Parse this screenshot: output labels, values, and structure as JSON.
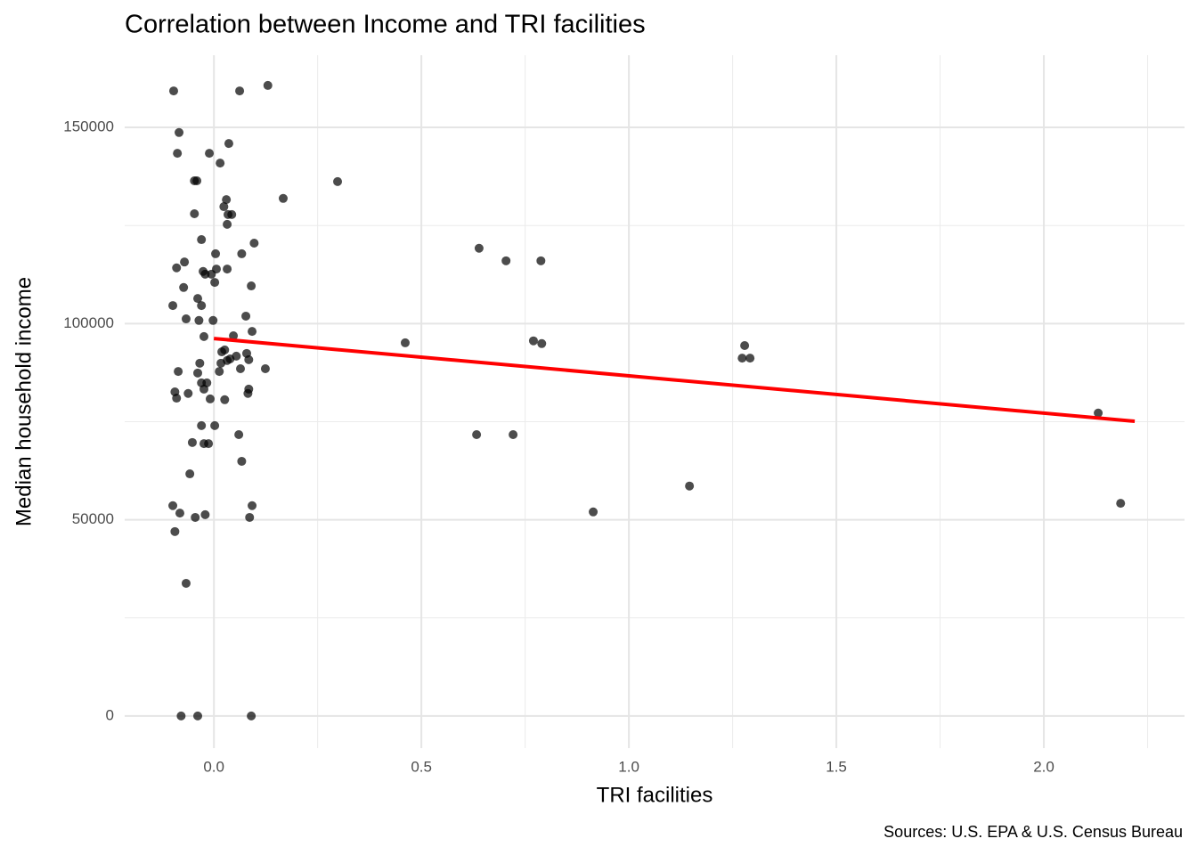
{
  "chart_data": {
    "type": "scatter",
    "title": "Correlation between Income and TRI facilities",
    "x_label": "TRI facilities",
    "y_label": "Median household income",
    "caption": "Sources: U.S. EPA & U.S. Census Bureau",
    "color": "#000000",
    "grid": true,
    "xlim": [
      -0.215,
      2.339
    ],
    "ylim": [
      -8200,
      168400
    ],
    "xticks": [
      {
        "value": 0,
        "label": "0.0"
      },
      0.5,
      {
        "value": 1,
        "label": "1.0"
      },
      1.5,
      {
        "value": 2,
        "label": "2.0"
      }
    ],
    "yticks": [
      0,
      50000,
      100000,
      150000
    ],
    "xminor_ticks": [
      0.25,
      0.75,
      1.25,
      1.75,
      2.25
    ],
    "yminor_ticks": [
      25000,
      75000,
      125000
    ],
    "x": [
      -0.097,
      0.062,
      0.13,
      -0.084,
      0.036,
      -0.088,
      -0.011,
      -0.047,
      -0.041,
      0.015,
      0.298,
      0.167,
      0.03,
      0.024,
      0.043,
      0.034,
      -0.047,
      0.032,
      -0.03,
      0.097,
      -0.09,
      -0.071,
      0.004,
      0.067,
      -0.026,
      -0.021,
      -0.006,
      0.002,
      0.006,
      0.032,
      -0.073,
      0.09,
      -0.039,
      -0.099,
      -0.03,
      -0.067,
      -0.036,
      -0.002,
      0.077,
      -0.024,
      0.047,
      0.092,
      0.019,
      0.026,
      0.054,
      0.079,
      0.032,
      0.039,
      0.017,
      0.084,
      -0.034,
      0.013,
      0.064,
      0.124,
      -0.086,
      -0.039,
      -0.03,
      -0.017,
      -0.024,
      -0.094,
      0.084,
      -0.062,
      -0.09,
      -0.009,
      0.026,
      0.082,
      -0.03,
      0.002,
      0.06,
      -0.052,
      -0.024,
      -0.013,
      0.067,
      -0.058,
      -0.099,
      -0.082,
      -0.021,
      -0.045,
      0.092,
      0.086,
      -0.094,
      -0.067,
      -0.079,
      -0.039,
      0.09,
      0.461,
      0.639,
      0.704,
      0.788,
      0.77,
      0.79,
      0.633,
      0.721,
      1.146,
      0.914,
      1.279,
      1.273,
      1.292,
      2.131,
      2.185
    ],
    "values": [
      159300,
      159300,
      160700,
      148700,
      145900,
      143400,
      143400,
      136400,
      136400,
      140900,
      136200,
      131900,
      131600,
      129800,
      127800,
      127800,
      128000,
      125300,
      121400,
      120500,
      114200,
      115700,
      117800,
      117800,
      113300,
      112600,
      112600,
      110500,
      113900,
      113900,
      109200,
      109600,
      106400,
      104600,
      104600,
      101200,
      100800,
      100800,
      101900,
      96700,
      96900,
      98000,
      92800,
      93300,
      91700,
      92400,
      90600,
      91000,
      89900,
      90800,
      89900,
      87800,
      88500,
      88500,
      87800,
      87400,
      84900,
      84900,
      83300,
      82600,
      83300,
      82200,
      81000,
      80800,
      80600,
      82200,
      74000,
      74000,
      71700,
      69700,
      69400,
      69400,
      64900,
      61700,
      53600,
      51700,
      51300,
      50600,
      53600,
      50600,
      47000,
      33800,
      0,
      0,
      0,
      95100,
      119200,
      116000,
      116000,
      95600,
      94900,
      71700,
      71700,
      58600,
      52000,
      94400,
      91200,
      91200,
      77200,
      54200
    ],
    "trend": {
      "color": "#ff0000",
      "x": [
        0,
        2.219
      ],
      "y": [
        96200,
        75100
      ]
    }
  }
}
